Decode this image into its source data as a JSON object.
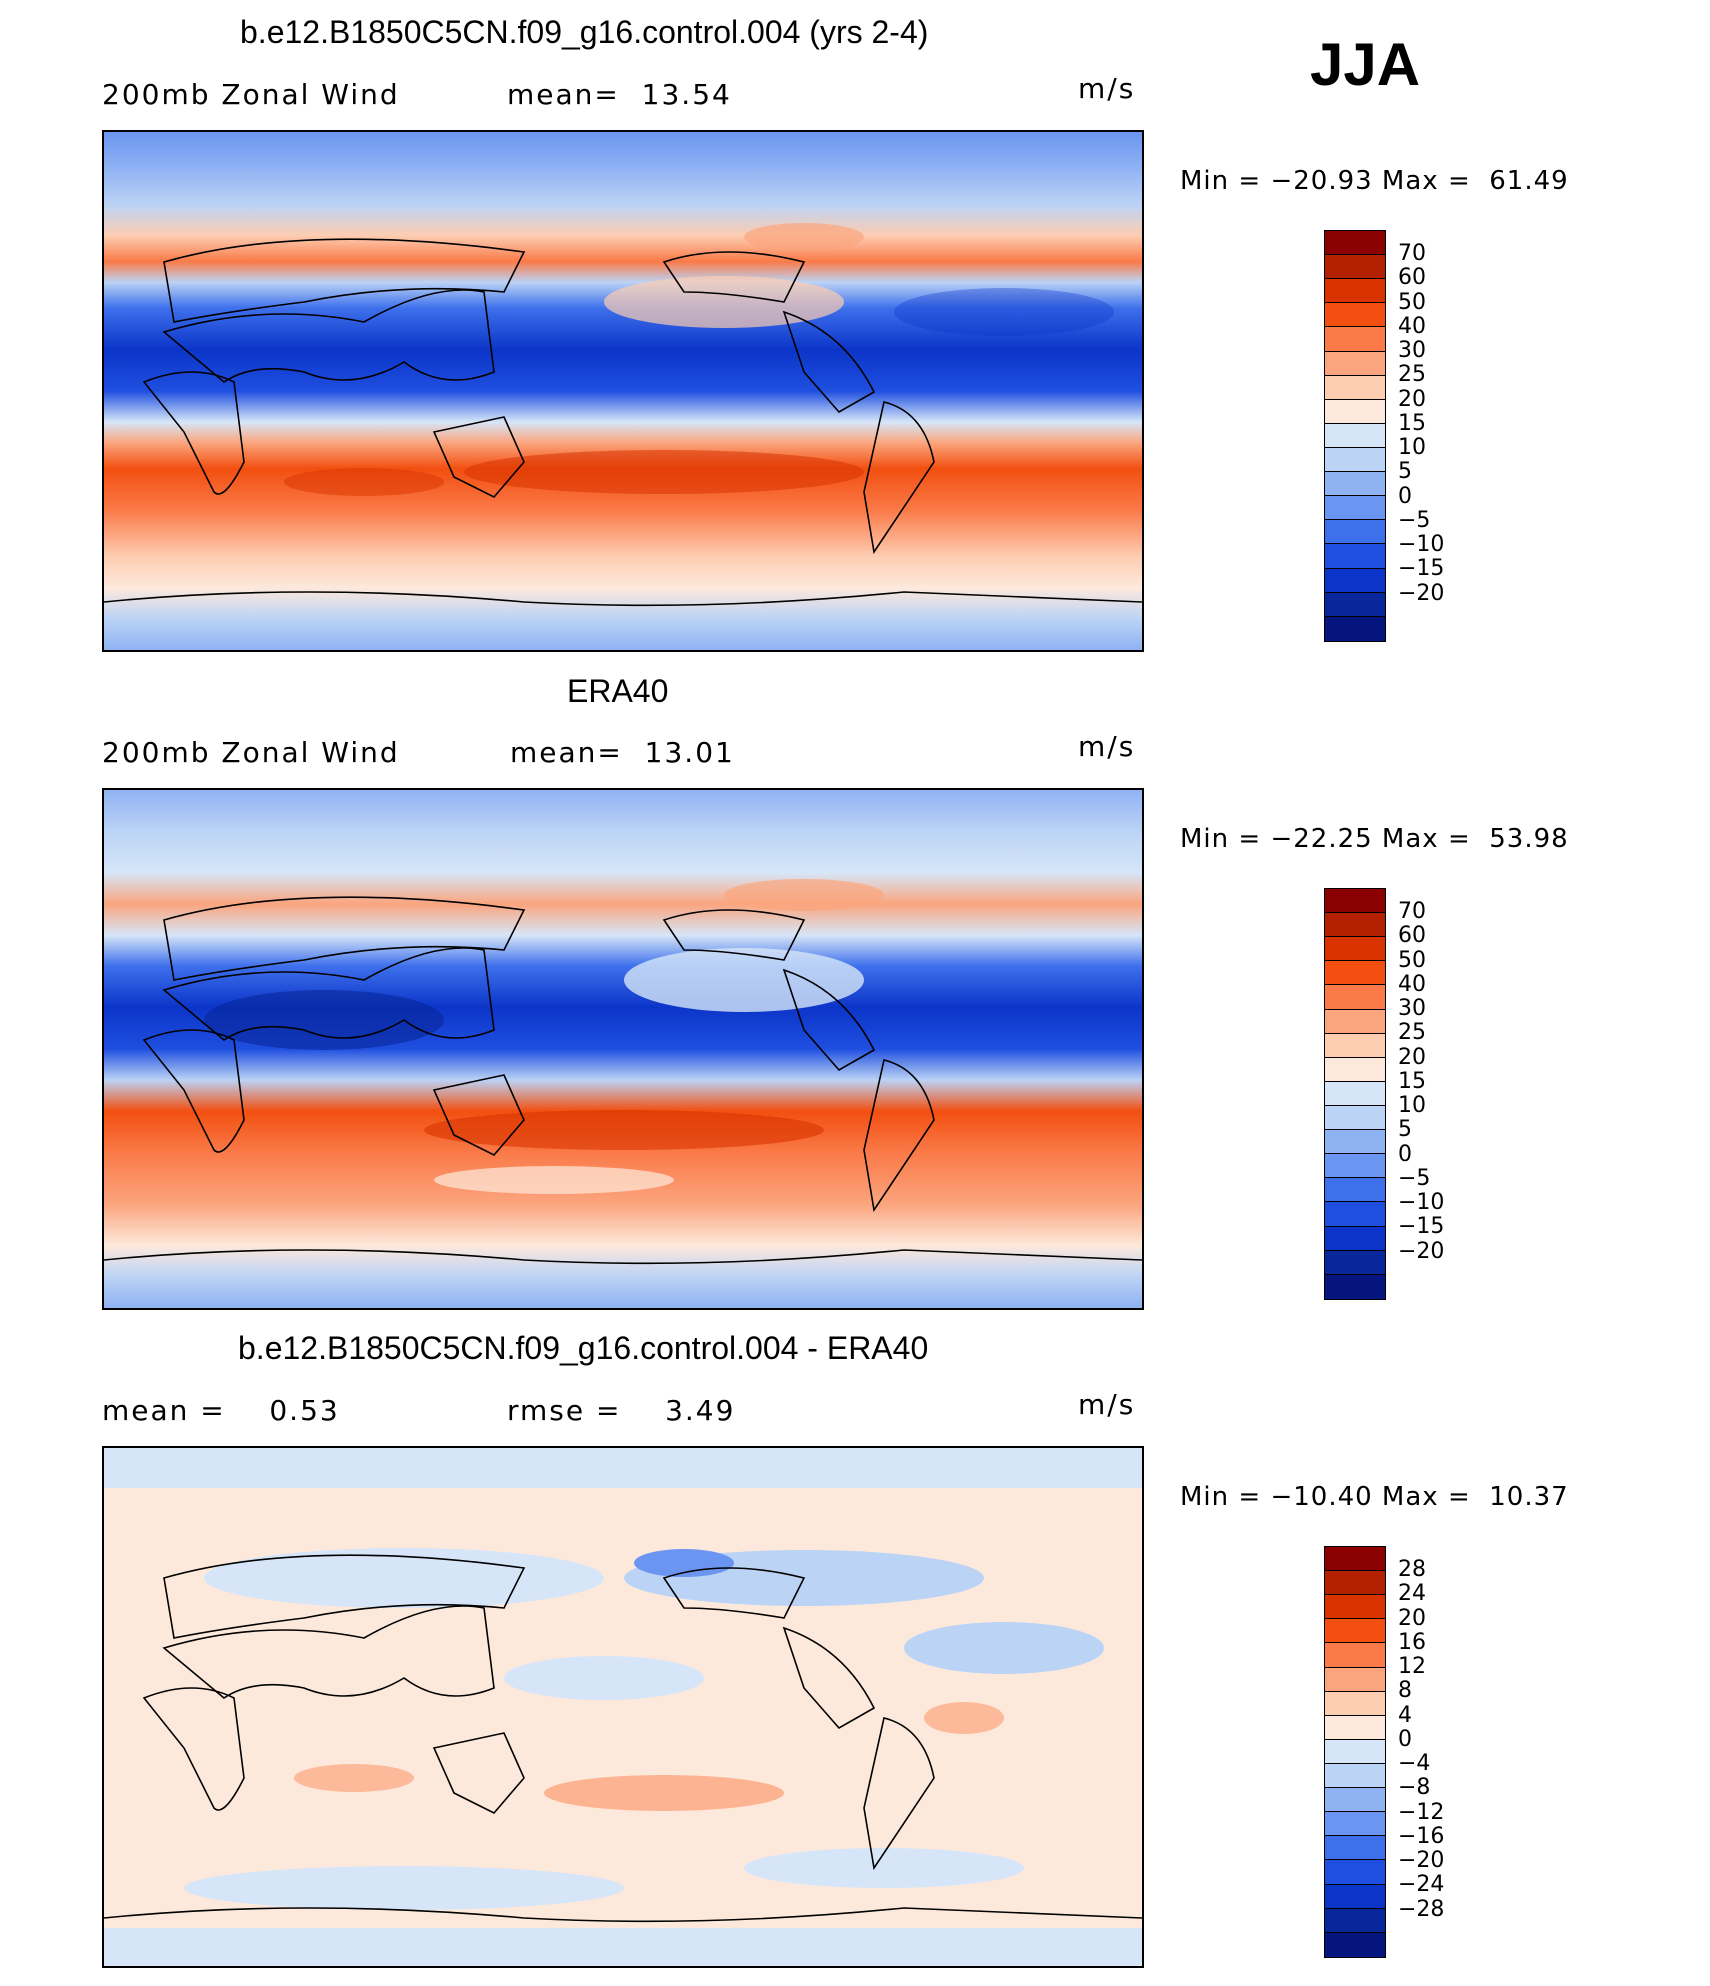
{
  "season": "JJA",
  "units": "m/s",
  "panels": [
    {
      "id": "model",
      "title": "b.e12.B1850C5CN.f09_g16.control.004 (yrs 2-4)",
      "sub_left": "200mb Zonal Wind",
      "sub_mid": "mean=  13.54",
      "minmax": "Min = −20.93 Max =  61.49",
      "colorbar_labels": [
        "70",
        "60",
        "50",
        "40",
        "30",
        "25",
        "20",
        "15",
        "10",
        "5",
        "0",
        "−5",
        "−10",
        "−15",
        "−20"
      ]
    },
    {
      "id": "obs",
      "title": "ERA40",
      "sub_left": "200mb Zonal Wind",
      "sub_mid": "mean=  13.01",
      "minmax": "Min = −22.25 Max =  53.98",
      "colorbar_labels": [
        "70",
        "60",
        "50",
        "40",
        "30",
        "25",
        "20",
        "15",
        "10",
        "5",
        "0",
        "−5",
        "−10",
        "−15",
        "−20"
      ]
    },
    {
      "id": "diff",
      "title": "b.e12.B1850C5CN.f09_g16.control.004 - ERA40",
      "sub_left": "mean =    0.53",
      "sub_mid": "rmse =    3.49",
      "minmax": "Min = −10.40 Max =  10.37",
      "colorbar_labels": [
        "28",
        "24",
        "20",
        "16",
        "12",
        "8",
        "4",
        "0",
        "−4",
        "−8",
        "−12",
        "−16",
        "−20",
        "−24",
        "−28"
      ]
    }
  ],
  "colorbar_colors": [
    "#8b0000",
    "#b22000",
    "#d93300",
    "#f24f10",
    "#fa7a48",
    "#fba57e",
    "#fdcdb2",
    "#fde9dc",
    "#d6e6f8",
    "#bbd3f5",
    "#8fb2f3",
    "#6a95f0",
    "#3e70ec",
    "#1f4fe0",
    "#0b35c8",
    "#08279a",
    "#051580"
  ],
  "chart_data": {
    "type": "heatmap",
    "map": "global zonal wind, 200 mb, JJA",
    "panels": [
      {
        "name": "b.e12.B1850C5CN.f09_g16.control.004 (yrs 2-4)",
        "mean": 13.54,
        "min": -20.93,
        "max": 61.49,
        "levels": [
          -20,
          -15,
          -10,
          -5,
          0,
          5,
          10,
          15,
          20,
          25,
          30,
          40,
          50,
          60,
          70
        ]
      },
      {
        "name": "ERA40",
        "mean": 13.01,
        "min": -22.25,
        "max": 53.98,
        "levels": [
          -20,
          -15,
          -10,
          -5,
          0,
          5,
          10,
          15,
          20,
          25,
          30,
          40,
          50,
          60,
          70
        ]
      },
      {
        "name": "b.e12.B1850C5CN.f09_g16.control.004 - ERA40",
        "mean": 0.53,
        "rmse": 3.49,
        "min": -10.4,
        "max": 10.37,
        "levels": [
          -28,
          -24,
          -20,
          -16,
          -12,
          -8,
          -4,
          0,
          4,
          8,
          12,
          16,
          20,
          24,
          28
        ]
      }
    ]
  }
}
